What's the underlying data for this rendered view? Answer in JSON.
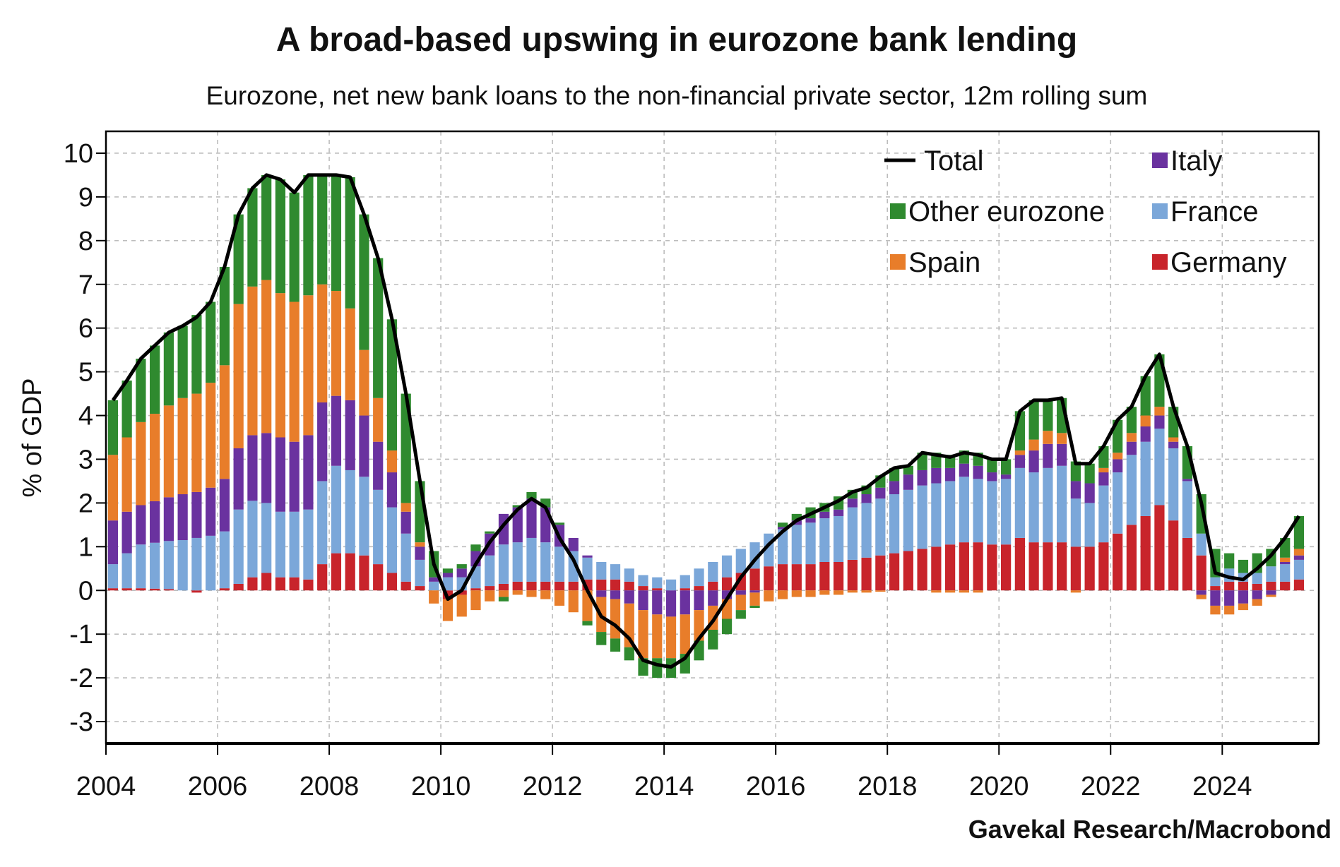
{
  "chart_data": {
    "type": "bar",
    "stacked": true,
    "title": "A broad-based upswing in eurozone bank lending",
    "subtitle": "Eurozone, net new bank loans to the non-financial private sector, 12m rolling sum",
    "ylabel": "% of GDP",
    "xlabel": "",
    "source": "Gavekal Research/Macrobond",
    "xlim": [
      2004,
      2025.73
    ],
    "ylim": [
      -3.5,
      10.5
    ],
    "yticks": [
      "10",
      "9",
      "8",
      "7",
      "6",
      "5",
      "4",
      "3",
      "2",
      "1",
      "0",
      "-1",
      "-2",
      "-3"
    ],
    "xticks": [
      "2004",
      "2006",
      "2008",
      "2010",
      "2012",
      "2014",
      "2016",
      "2018",
      "2020",
      "2022",
      "2024"
    ],
    "grid": true,
    "legend_position": "top-right",
    "legend": [
      {
        "name": "Total",
        "type": "line"
      },
      {
        "name": "Italy",
        "type": "bar"
      },
      {
        "name": "Other eurozone",
        "type": "bar"
      },
      {
        "name": "France",
        "type": "bar"
      },
      {
        "name": "Spain",
        "type": "bar"
      },
      {
        "name": "Germany",
        "type": "bar"
      }
    ],
    "frequency": "quarterly",
    "start_period": "2004Q1",
    "end_period": "2025Q2",
    "series": [
      {
        "name": "Germany",
        "color": "#c8242b",
        "values": [
          0.05,
          0.05,
          0.05,
          0.04,
          0.03,
          0,
          -0.05,
          0,
          0.05,
          0.15,
          0.3,
          0.4,
          0.3,
          0.3,
          0.25,
          0.6,
          0.85,
          0.85,
          0.8,
          0.6,
          0.4,
          0.2,
          0.1,
          0,
          -0.2,
          -0.1,
          0.05,
          0.1,
          0.15,
          0.2,
          0.2,
          0.2,
          0.2,
          0.2,
          0.25,
          0.25,
          0.25,
          0.2,
          0.1,
          0.05,
          0,
          0.05,
          0.1,
          0.2,
          0.3,
          0.4,
          0.5,
          0.55,
          0.6,
          0.6,
          0.6,
          0.65,
          0.65,
          0.7,
          0.75,
          0.8,
          0.85,
          0.9,
          0.95,
          1.0,
          1.05,
          1.1,
          1.1,
          1.05,
          1.05,
          1.2,
          1.1,
          1.1,
          1.1,
          1.0,
          1.0,
          1.1,
          1.3,
          1.5,
          1.7,
          1.95,
          1.6,
          1.2,
          0.8,
          0.1,
          0.2,
          0.2,
          0.15,
          0.2,
          0.2,
          0.25
        ]
      },
      {
        "name": "France",
        "color": "#7ba7d9",
        "values": [
          0.55,
          0.8,
          1.0,
          1.05,
          1.1,
          1.15,
          1.2,
          1.25,
          1.3,
          1.7,
          1.75,
          1.6,
          1.5,
          1.5,
          1.6,
          1.9,
          2.0,
          1.9,
          1.8,
          1.7,
          1.5,
          1.1,
          0.6,
          0.2,
          0.3,
          0.3,
          0.5,
          0.7,
          0.9,
          0.9,
          1.0,
          0.9,
          0.8,
          0.7,
          0.5,
          0.4,
          0.35,
          0.3,
          0.25,
          0.25,
          0.25,
          0.3,
          0.4,
          0.45,
          0.5,
          0.55,
          0.6,
          0.75,
          0.8,
          0.9,
          0.95,
          1.0,
          1.05,
          1.2,
          1.25,
          1.3,
          1.35,
          1.4,
          1.45,
          1.45,
          1.45,
          1.5,
          1.45,
          1.45,
          1.5,
          1.6,
          1.6,
          1.7,
          1.75,
          1.1,
          1.0,
          1.3,
          1.4,
          1.6,
          1.7,
          1.75,
          1.65,
          1.3,
          0.5,
          0.2,
          0.3,
          0.2,
          0.25,
          0.35,
          0.4,
          0.45
        ]
      },
      {
        "name": "Italy",
        "color": "#6a329f",
        "values": [
          1.0,
          0.95,
          0.9,
          0.95,
          1.0,
          1.05,
          1.05,
          1.1,
          1.2,
          1.4,
          1.5,
          1.6,
          1.7,
          1.6,
          1.7,
          1.8,
          1.6,
          1.6,
          1.4,
          1.1,
          0.8,
          0.5,
          0.3,
          0.1,
          0.1,
          0.2,
          0.35,
          0.5,
          0.7,
          0.8,
          0.9,
          0.8,
          0.5,
          0.3,
          0.05,
          -0.15,
          -0.2,
          -0.3,
          -0.45,
          -0.55,
          -0.6,
          -0.55,
          -0.45,
          -0.35,
          -0.2,
          -0.1,
          -0.05,
          0,
          0.05,
          0.1,
          0.1,
          0.15,
          0.15,
          0.2,
          0.2,
          0.25,
          0.3,
          0.35,
          0.35,
          0.35,
          0.3,
          0.3,
          0.3,
          0.2,
          0.1,
          0.3,
          0.5,
          0.55,
          0.5,
          0.4,
          0.45,
          0.3,
          0.3,
          0.3,
          0.35,
          0.3,
          0.15,
          0.05,
          -0.1,
          -0.35,
          -0.35,
          -0.3,
          -0.2,
          -0.1,
          0.05,
          0.1
        ]
      },
      {
        "name": "Spain",
        "color": "#e87d2a",
        "values": [
          1.5,
          1.7,
          1.9,
          2.0,
          2.1,
          2.2,
          2.25,
          2.4,
          2.6,
          3.3,
          3.4,
          3.5,
          3.3,
          3.2,
          3.2,
          2.7,
          2.4,
          2.1,
          1.5,
          1.0,
          0.5,
          0.2,
          0.1,
          -0.3,
          -0.5,
          -0.5,
          -0.45,
          -0.25,
          -0.15,
          -0.1,
          -0.15,
          -0.2,
          -0.35,
          -0.5,
          -0.7,
          -0.8,
          -0.9,
          -1.0,
          -1.1,
          -1.0,
          -0.95,
          -0.9,
          -0.7,
          -0.55,
          -0.45,
          -0.35,
          -0.3,
          -0.25,
          -0.2,
          -0.15,
          -0.15,
          -0.1,
          -0.1,
          -0.05,
          -0.05,
          -0.03,
          0,
          0,
          0,
          -0.05,
          -0.05,
          -0.05,
          -0.05,
          0,
          0,
          0.1,
          0.25,
          0.3,
          0.25,
          -0.05,
          0,
          0.1,
          0.15,
          0.2,
          0.25,
          0.2,
          0.1,
          0,
          -0.1,
          -0.2,
          -0.2,
          -0.15,
          -0.15,
          -0.05,
          0.1,
          0.15
        ]
      },
      {
        "name": "Other eurozone",
        "color": "#2f8a2f",
        "values": [
          1.25,
          1.3,
          1.45,
          1.56,
          1.67,
          1.65,
          1.8,
          1.85,
          2.25,
          2.05,
          2.25,
          2.4,
          2.6,
          2.5,
          2.75,
          2.5,
          2.65,
          3.0,
          3.1,
          3.2,
          3.0,
          2.5,
          1.4,
          0.6,
          0.1,
          0.1,
          0.15,
          0.05,
          -0.1,
          0.05,
          0.15,
          0.2,
          0.05,
          0,
          -0.1,
          -0.3,
          -0.3,
          -0.3,
          -0.4,
          -0.45,
          -0.45,
          -0.45,
          -0.45,
          -0.45,
          -0.35,
          -0.2,
          -0.05,
          0,
          0.1,
          0.15,
          0.25,
          0.2,
          0.3,
          0.2,
          0.2,
          0.28,
          0.3,
          0.2,
          0.4,
          0.35,
          0.3,
          0.3,
          0.3,
          0.3,
          0.35,
          0.9,
          0.9,
          0.7,
          0.8,
          0.45,
          0.45,
          0.5,
          0.75,
          0.6,
          0.9,
          1.2,
          0.7,
          0.75,
          0.9,
          0.65,
          0.35,
          0.3,
          0.45,
          0.4,
          0.45,
          0.75
        ]
      }
    ],
    "total": {
      "name": "Total",
      "color": "#000000",
      "values": [
        4.35,
        4.8,
        5.3,
        5.6,
        5.9,
        6.05,
        6.25,
        6.6,
        7.4,
        8.6,
        9.2,
        9.5,
        9.4,
        9.1,
        9.5,
        9.5,
        9.5,
        9.45,
        8.6,
        7.6,
        6.2,
        4.5,
        2.5,
        0.6,
        -0.2,
        0,
        0.6,
        1.1,
        1.5,
        1.85,
        2.1,
        1.9,
        1.2,
        0.7,
        0,
        -0.6,
        -0.8,
        -1.1,
        -1.6,
        -1.7,
        -1.75,
        -1.55,
        -1.1,
        -0.7,
        -0.2,
        0.3,
        0.7,
        1.05,
        1.35,
        1.6,
        1.75,
        1.9,
        2.05,
        2.25,
        2.35,
        2.6,
        2.8,
        2.85,
        3.15,
        3.1,
        3.05,
        3.15,
        3.1,
        3.0,
        3.0,
        4.1,
        4.35,
        4.35,
        4.4,
        2.9,
        2.9,
        3.3,
        3.9,
        4.2,
        4.9,
        5.4,
        4.2,
        3.3,
        2.0,
        0.4,
        0.3,
        0.25,
        0.5,
        0.8,
        1.2,
        1.7
      ]
    }
  }
}
